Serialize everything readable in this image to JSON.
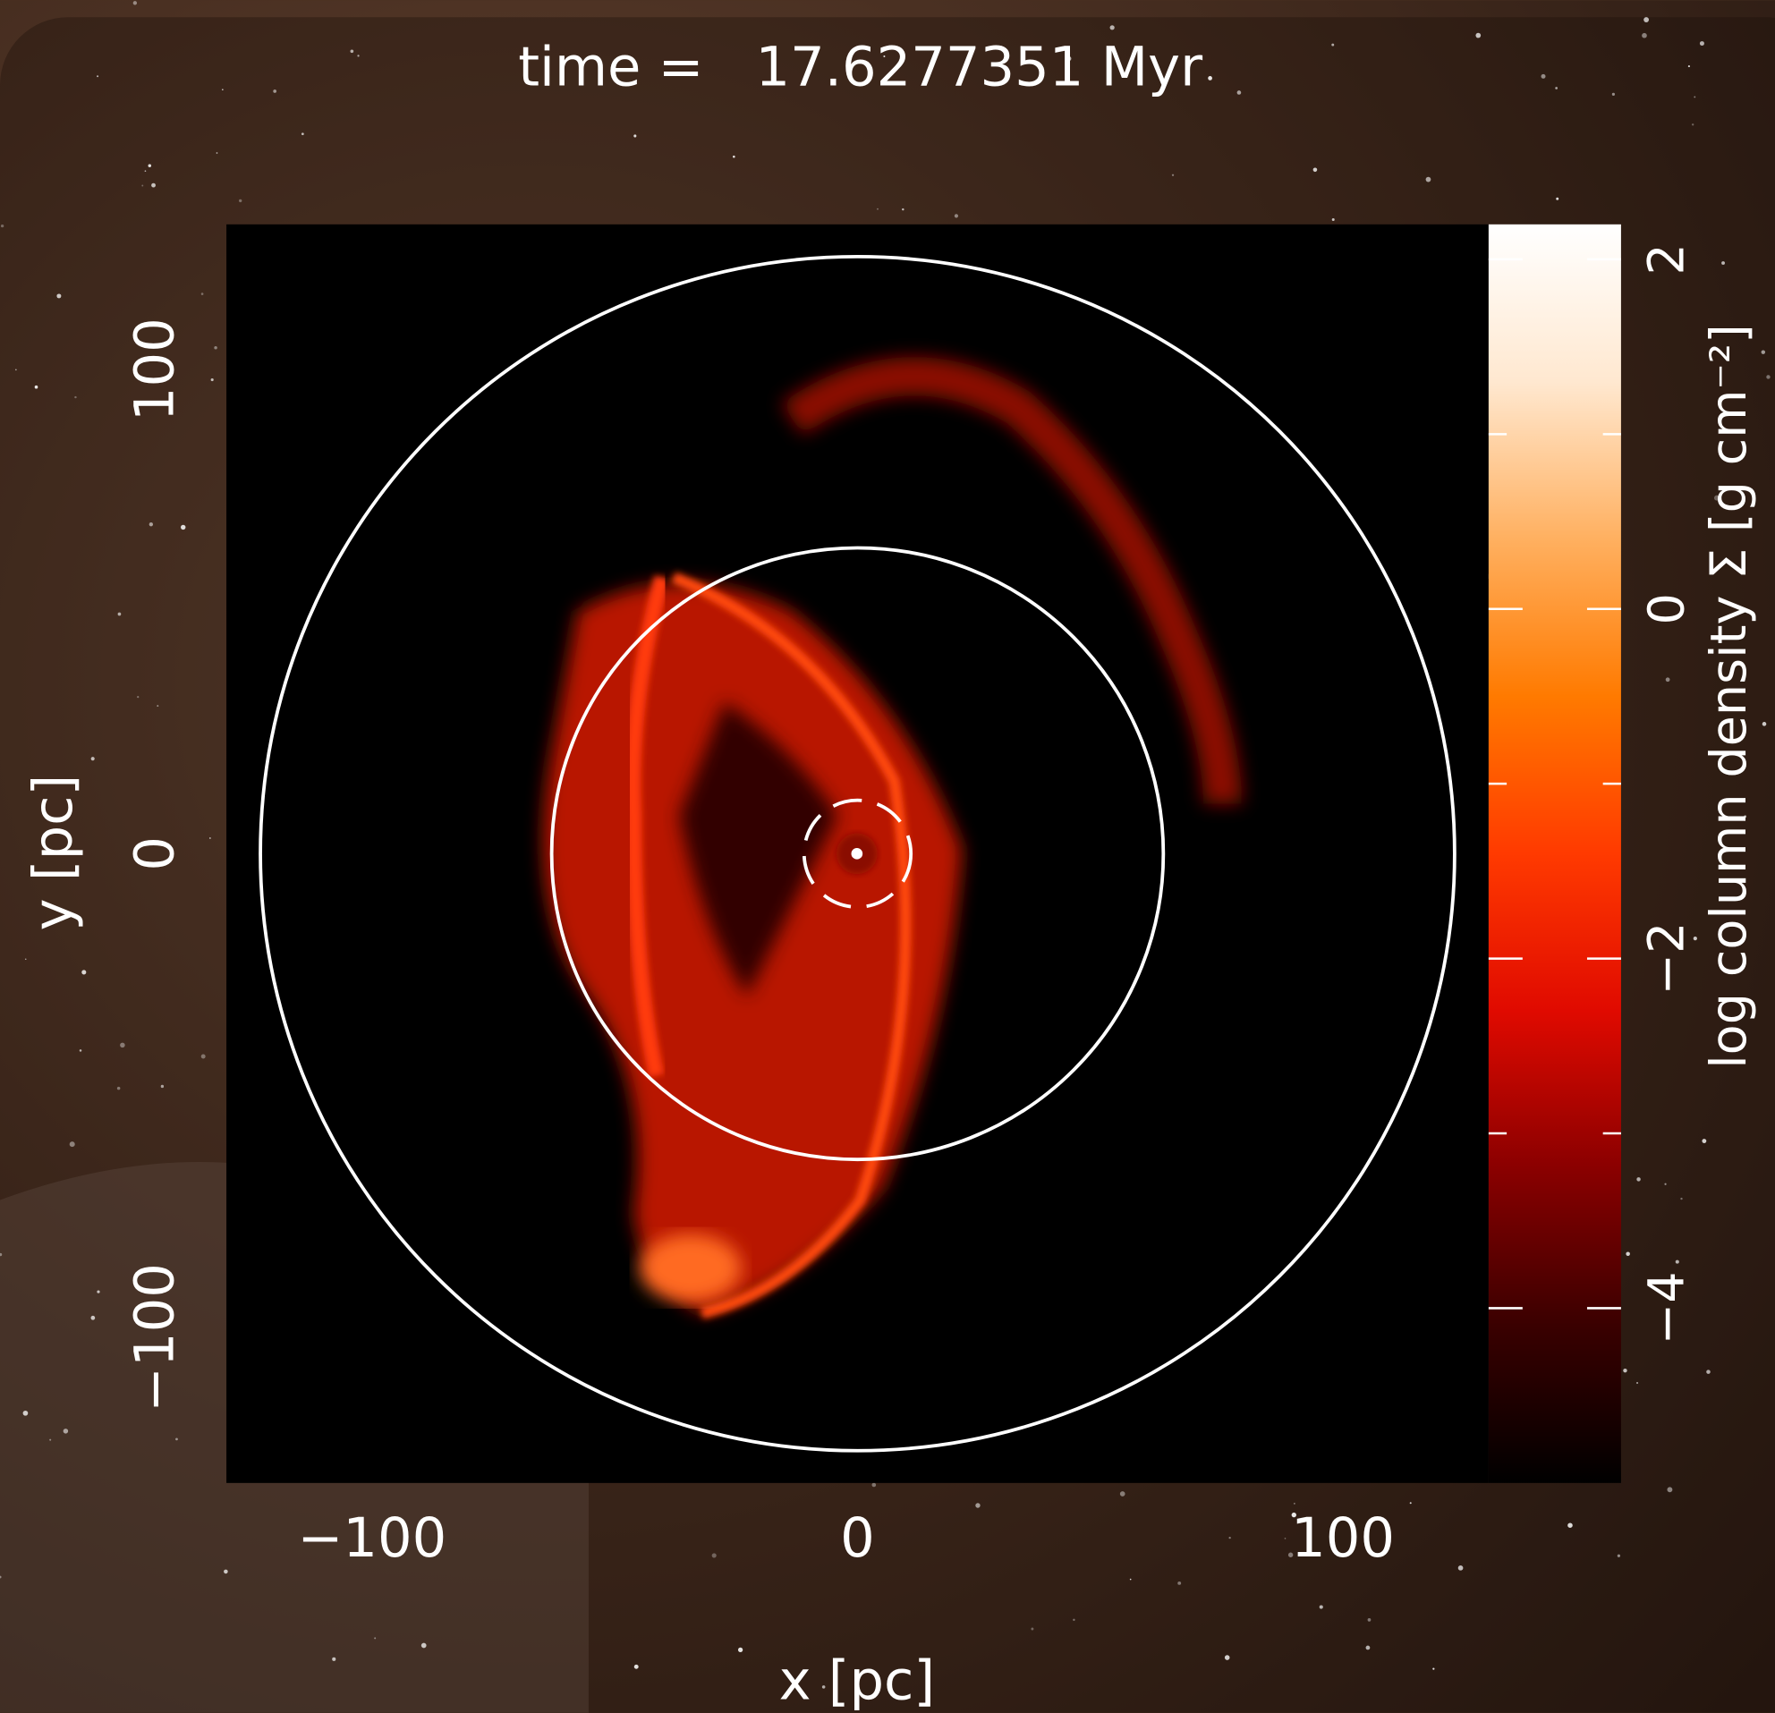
{
  "chart_data": {
    "type": "image",
    "title": "time =   17.6277351 Myr",
    "xlabel": "x [pc]",
    "ylabel": "y [pc]",
    "xlim": [
      -130,
      130
    ],
    "ylim": [
      -130,
      130
    ],
    "xticks": [
      {
        "value": -100,
        "label": "−100"
      },
      0,
      100
    ],
    "yticks": [
      {
        "value": -100,
        "label": "−100"
      },
      0,
      100
    ],
    "colorbar": {
      "label": "log column density Σ [g cm⁻²]",
      "clim": [
        -5,
        2.2
      ],
      "ticks": [
        {
          "value": -4,
          "label": "−4"
        },
        {
          "value": -2,
          "label": "−2"
        },
        0,
        2
      ],
      "minor_ticks": [
        -3,
        -1,
        1
      ],
      "colors": [
        "#000000",
        "#3a0000",
        "#8a0000",
        "#e00a00",
        "#ff3a00",
        "#ff7a00",
        "#ffb060",
        "#ffe8d0",
        "#ffffff"
      ]
    },
    "circles": [
      {
        "radius": 123
      },
      {
        "radius": 63
      },
      {
        "radius": 11,
        "dashed": true
      }
    ]
  }
}
